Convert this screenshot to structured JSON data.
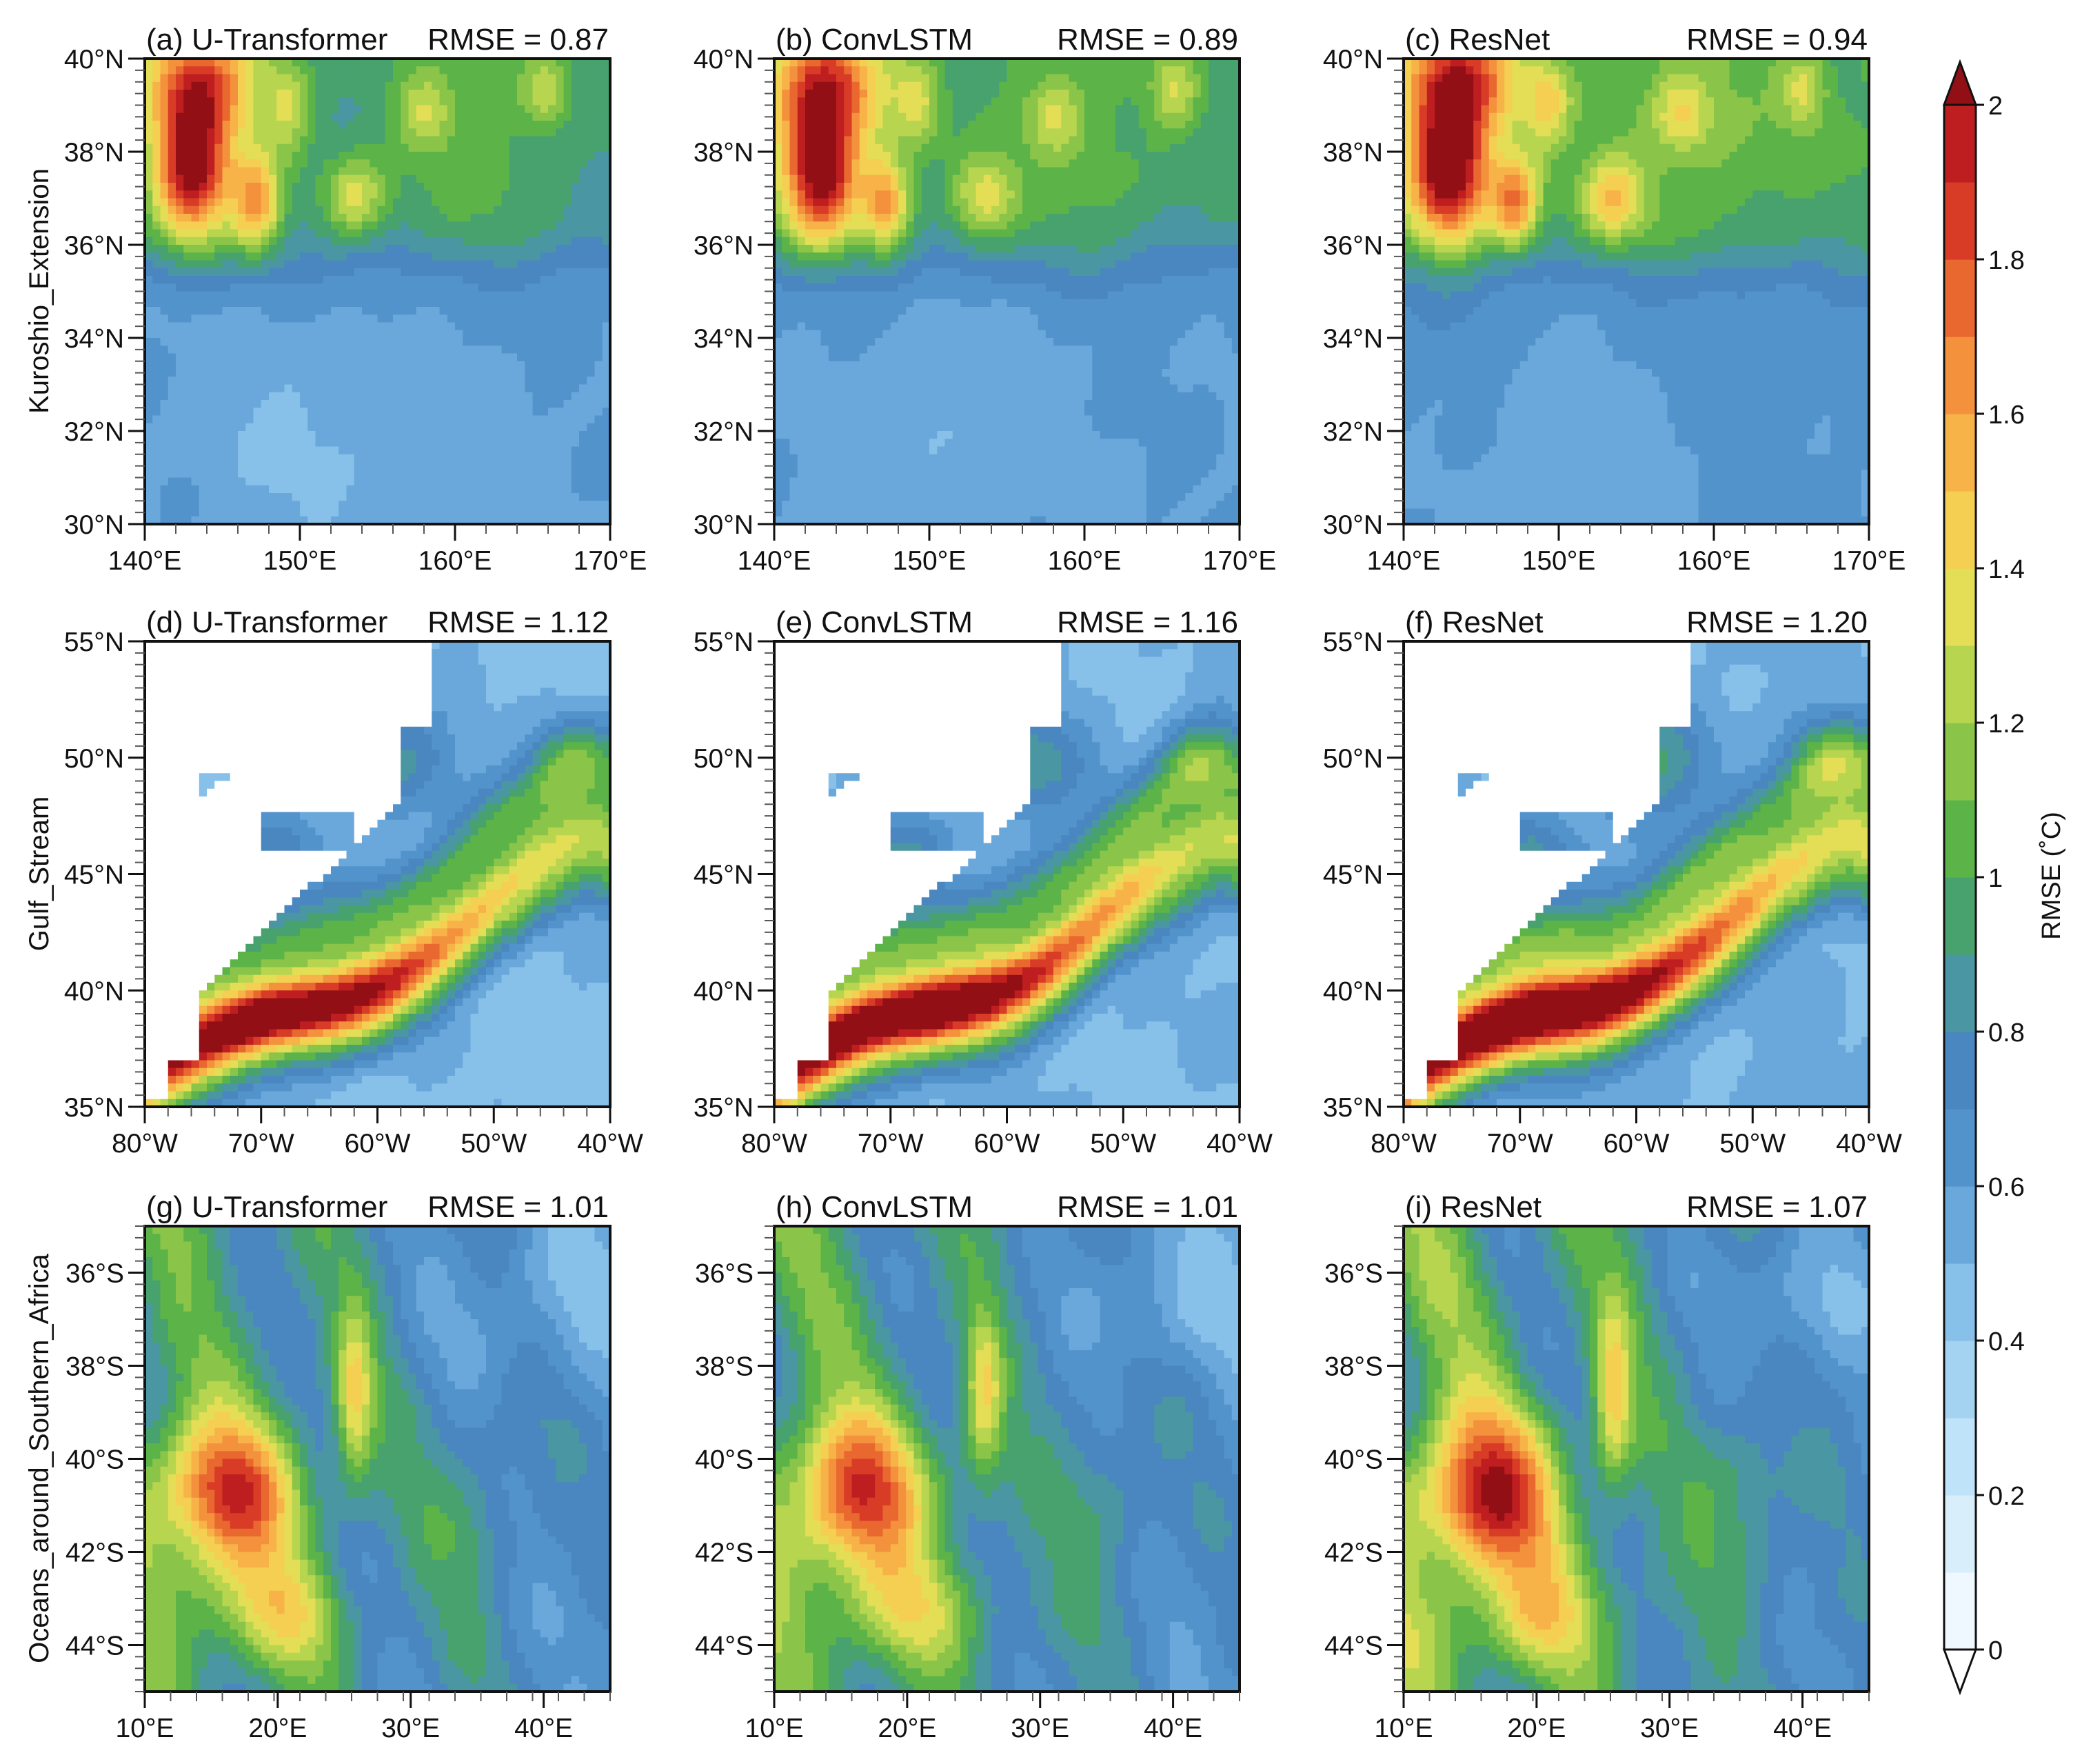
{
  "figure": {
    "colorbar": {
      "title": "RMSE (˚C)",
      "min": 0,
      "max": 2,
      "step": 0.1,
      "tick_values": [
        0,
        0.2,
        0.4,
        0.6,
        0.8,
        1,
        1.2,
        1.4,
        1.6,
        1.8,
        2
      ],
      "tick_labels": [
        "0",
        "0.2",
        "0.4",
        "0.6",
        "0.8",
        "1",
        "1.2",
        "1.4",
        "1.6",
        "1.8",
        "2"
      ],
      "colors": [
        "#ffffff",
        "#eef8fe",
        "#d8eefb",
        "#bfe3f8",
        "#a4d3f1",
        "#87c0e8",
        "#6aa8dc",
        "#5393cc",
        "#4a86bf",
        "#4a96a2",
        "#47a26e",
        "#5cb448",
        "#8ac54a",
        "#b7d54e",
        "#e3de55",
        "#f5cf52",
        "#f7b348",
        "#f4913c",
        "#e9682f",
        "#d83c27",
        "#bf1e20",
        "#921015"
      ]
    },
    "land_color": "#ffffff"
  },
  "chart_data": [
    {
      "type": "heatmap",
      "id": "a",
      "row": "Kuroshio_Extension",
      "model": "U-Transformer",
      "title_left": "(a) U-Transformer",
      "title_right": "RMSE = 0.87",
      "rmse": 0.87,
      "lon_range": [
        140,
        170
      ],
      "lat_range": [
        30,
        40
      ],
      "xticks": [
        140,
        150,
        160,
        170
      ],
      "xtick_labels": [
        "140°E",
        "150°E",
        "160°E",
        "170°E"
      ],
      "yticks": [
        30,
        32,
        34,
        36,
        38,
        40
      ],
      "ytick_labels": [
        "30°N",
        "32°N",
        "34°N",
        "36°N",
        "38°N",
        "40°N"
      ],
      "scale": 1.0
    },
    {
      "type": "heatmap",
      "id": "b",
      "row": "Kuroshio_Extension",
      "model": "ConvLSTM",
      "title_left": "(b) ConvLSTM",
      "title_right": "RMSE = 0.89",
      "rmse": 0.89,
      "lon_range": [
        140,
        170
      ],
      "lat_range": [
        30,
        40
      ],
      "xticks": [
        140,
        150,
        160,
        170
      ],
      "xtick_labels": [
        "140°E",
        "150°E",
        "160°E",
        "170°E"
      ],
      "yticks": [
        30,
        32,
        34,
        36,
        38,
        40
      ],
      "ytick_labels": [
        "30°N",
        "32°N",
        "34°N",
        "36°N",
        "38°N",
        "40°N"
      ],
      "scale": 1.02
    },
    {
      "type": "heatmap",
      "id": "c",
      "row": "Kuroshio_Extension",
      "model": "ResNet",
      "title_left": "(c) ResNet",
      "title_right": "RMSE = 0.94",
      "rmse": 0.94,
      "lon_range": [
        140,
        170
      ],
      "lat_range": [
        30,
        40
      ],
      "xticks": [
        140,
        150,
        160,
        170
      ],
      "xtick_labels": [
        "140°E",
        "150°E",
        "160°E",
        "170°E"
      ],
      "yticks": [
        30,
        32,
        34,
        36,
        38,
        40
      ],
      "ytick_labels": [
        "30°N",
        "32°N",
        "34°N",
        "36°N",
        "38°N",
        "40°N"
      ],
      "scale": 1.08
    },
    {
      "type": "heatmap",
      "id": "d",
      "row": "Gulf_Stream",
      "model": "U-Transformer",
      "title_left": "(d) U-Transformer",
      "title_right": "RMSE = 1.12",
      "rmse": 1.12,
      "lon_range": [
        -80,
        -40
      ],
      "lat_range": [
        35,
        55
      ],
      "xticks": [
        -80,
        -70,
        -60,
        -50,
        -40
      ],
      "xtick_labels": [
        "80°W",
        "70°W",
        "60°W",
        "50°W",
        "40°W"
      ],
      "yticks": [
        35,
        40,
        45,
        50,
        55
      ],
      "ytick_labels": [
        "35°N",
        "40°N",
        "45°N",
        "50°N",
        "55°N"
      ],
      "scale": 1.0
    },
    {
      "type": "heatmap",
      "id": "e",
      "row": "Gulf_Stream",
      "model": "ConvLSTM",
      "title_left": "(e) ConvLSTM",
      "title_right": "RMSE = 1.16",
      "rmse": 1.16,
      "lon_range": [
        -80,
        -40
      ],
      "lat_range": [
        35,
        55
      ],
      "xticks": [
        -80,
        -70,
        -60,
        -50,
        -40
      ],
      "xtick_labels": [
        "80°W",
        "70°W",
        "60°W",
        "50°W",
        "40°W"
      ],
      "yticks": [
        35,
        40,
        45,
        50,
        55
      ],
      "ytick_labels": [
        "35°N",
        "40°N",
        "45°N",
        "50°N",
        "55°N"
      ],
      "scale": 1.03
    },
    {
      "type": "heatmap",
      "id": "f",
      "row": "Gulf_Stream",
      "model": "ResNet",
      "title_left": "(f) ResNet",
      "title_right": "RMSE = 1.20",
      "rmse": 1.2,
      "lon_range": [
        -80,
        -40
      ],
      "lat_range": [
        35,
        55
      ],
      "xticks": [
        -80,
        -70,
        -60,
        -50,
        -40
      ],
      "xtick_labels": [
        "80°W",
        "70°W",
        "60°W",
        "50°W",
        "40°W"
      ],
      "yticks": [
        35,
        40,
        45,
        50,
        55
      ],
      "ytick_labels": [
        "35°N",
        "40°N",
        "45°N",
        "50°N",
        "55°N"
      ],
      "scale": 1.07
    },
    {
      "type": "heatmap",
      "id": "g",
      "row": "Oceans_around_Southern_Africa",
      "model": "U-Transformer",
      "title_left": "(g) U-Transformer",
      "title_right": "RMSE = 1.01",
      "rmse": 1.01,
      "lon_range": [
        10,
        45
      ],
      "lat_range": [
        -45,
        -35
      ],
      "xticks": [
        10,
        20,
        30,
        40
      ],
      "xtick_labels": [
        "10°E",
        "20°E",
        "30°E",
        "40°E"
      ],
      "yticks": [
        -44,
        -42,
        -40,
        -38,
        -36
      ],
      "ytick_labels": [
        "44°S",
        "42°S",
        "40°S",
        "38°S",
        "36°S"
      ],
      "scale": 1.0
    },
    {
      "type": "heatmap",
      "id": "h",
      "row": "Oceans_around_Southern_Africa",
      "model": "ConvLSTM",
      "title_left": "(h) ConvLSTM",
      "title_right": "RMSE = 1.01",
      "rmse": 1.01,
      "lon_range": [
        10,
        45
      ],
      "lat_range": [
        -45,
        -35
      ],
      "xticks": [
        10,
        20,
        30,
        40
      ],
      "xtick_labels": [
        "10°E",
        "20°E",
        "30°E",
        "40°E"
      ],
      "yticks": [
        -44,
        -42,
        -40,
        -38,
        -36
      ],
      "ytick_labels": [
        "44°S",
        "42°S",
        "40°S",
        "38°S",
        "36°S"
      ],
      "scale": 1.0
    },
    {
      "type": "heatmap",
      "id": "i",
      "row": "Oceans_around_Southern_Africa",
      "model": "ResNet",
      "title_left": "(i) ResNet",
      "title_right": "RMSE = 1.07",
      "rmse": 1.07,
      "lon_range": [
        10,
        45
      ],
      "lat_range": [
        -45,
        -35
      ],
      "xticks": [
        10,
        20,
        30,
        40
      ],
      "xtick_labels": [
        "10°E",
        "20°E",
        "30°E",
        "40°E"
      ],
      "yticks": [
        -44,
        -42,
        -40,
        -38,
        -36
      ],
      "ytick_labels": [
        "44°S",
        "42°S",
        "40°S",
        "38°S",
        "36°S"
      ],
      "scale": 1.06
    }
  ],
  "row_labels": [
    "Kuroshio_Extension",
    "Gulf_Stream",
    "Oceans_around_Southern_Africa"
  ]
}
